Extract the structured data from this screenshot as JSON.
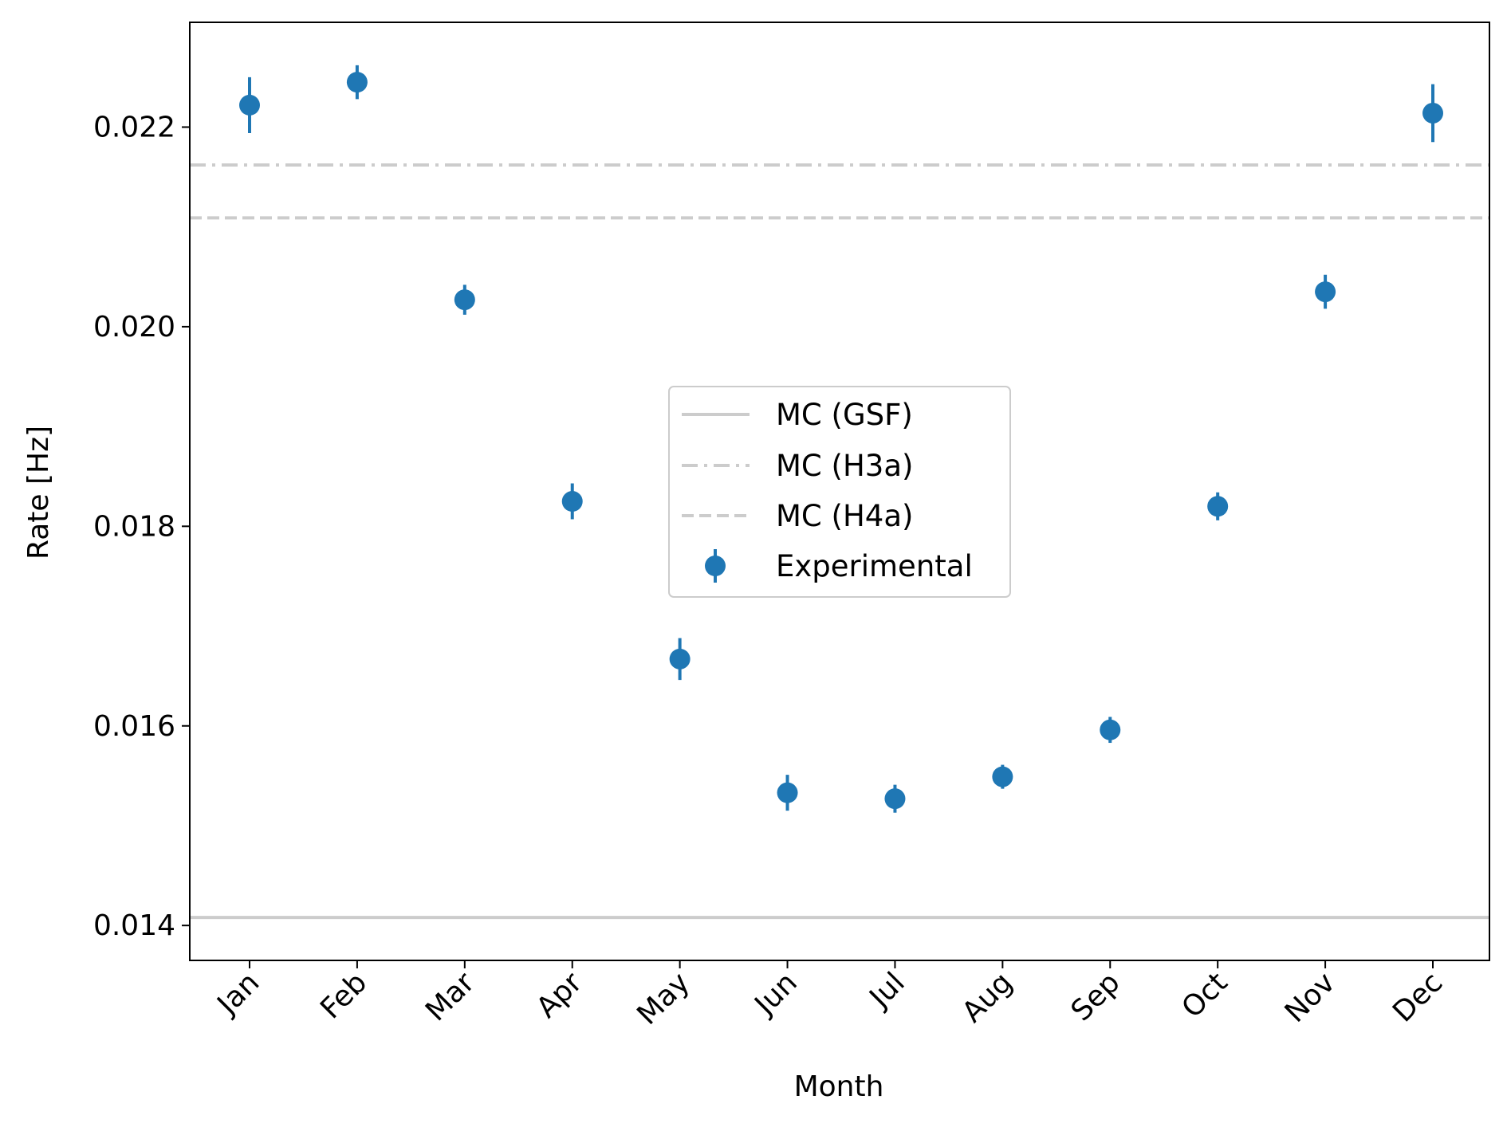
{
  "chart_data": {
    "type": "scatter",
    "title": "",
    "xlabel": "Month",
    "ylabel": "Rate [Hz]",
    "categories": [
      "Jan",
      "Feb",
      "Mar",
      "Apr",
      "May",
      "Jun",
      "Jul",
      "Aug",
      "Sep",
      "Oct",
      "Nov",
      "Dec"
    ],
    "ylim": [
      0.01365,
      0.02305
    ],
    "yticks": [
      0.014,
      0.016,
      0.018,
      0.02,
      0.022
    ],
    "ytick_labels": [
      "0.014",
      "0.016",
      "0.018",
      "0.020",
      "0.022"
    ],
    "grid": false,
    "legend_position": "center",
    "series": [
      {
        "name": "Experimental",
        "kind": "errorbar",
        "color": "#1f77b4",
        "values": [
          0.02222,
          0.02245,
          0.02027,
          0.01825,
          0.01667,
          0.01533,
          0.01527,
          0.01549,
          0.01596,
          0.0182,
          0.02035,
          0.02214
        ],
        "errors": [
          0.00028,
          0.00017,
          0.00015,
          0.00018,
          0.00021,
          0.00018,
          0.00014,
          0.00012,
          0.00013,
          0.00014,
          0.00017,
          0.00029
        ]
      }
    ],
    "reference_lines": [
      {
        "name": "MC (GSF)",
        "value": 0.01408,
        "style": "solid",
        "color": "#cccccc"
      },
      {
        "name": "MC (H3a)",
        "value": 0.02162,
        "style": "dashdot",
        "color": "#cccccc"
      },
      {
        "name": "MC (H4a)",
        "value": 0.02109,
        "style": "dashed",
        "color": "#cccccc"
      }
    ],
    "legend": [
      "MC (GSF)",
      "MC (H3a)",
      "MC (H4a)",
      "Experimental"
    ]
  }
}
